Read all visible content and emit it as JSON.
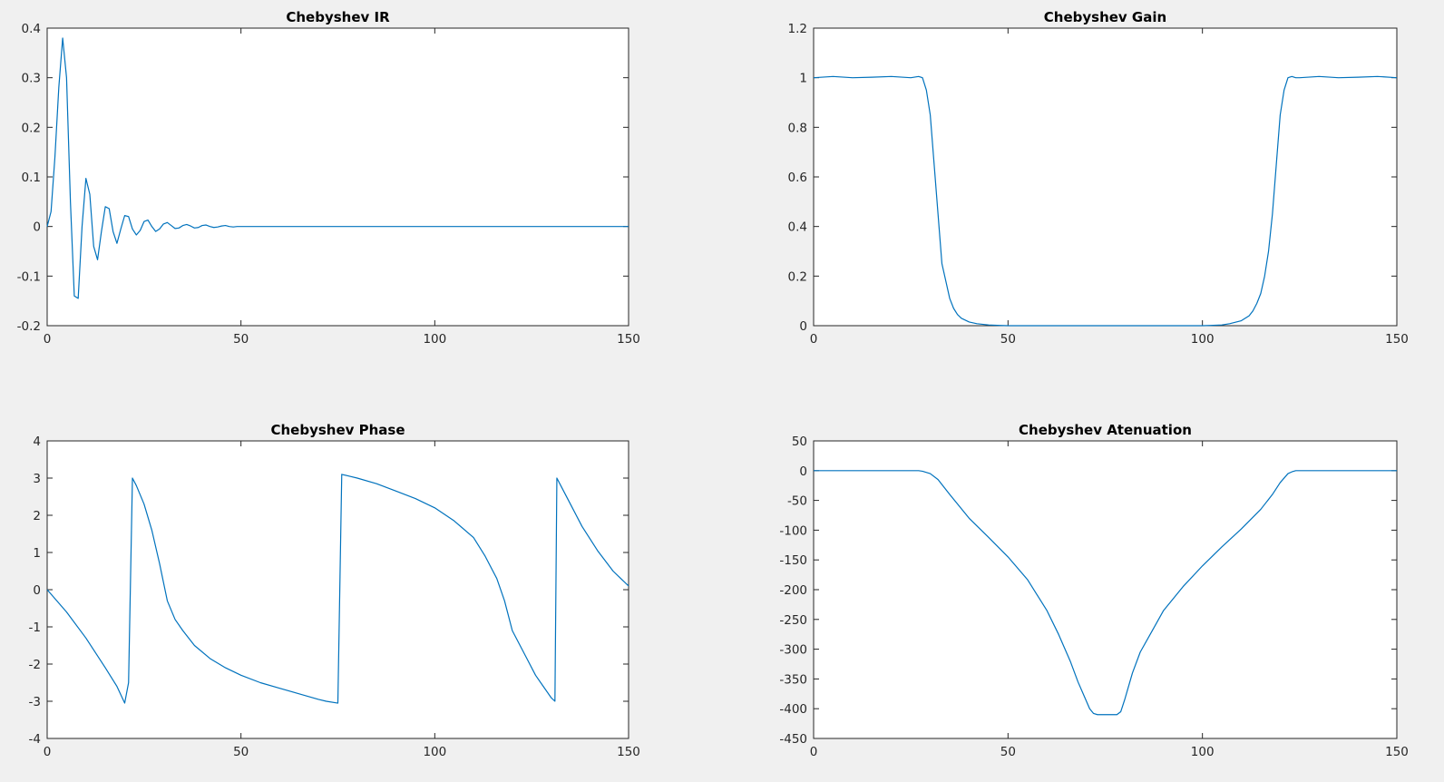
{
  "figure": {
    "background": "#f0f0f0",
    "line_color": "#0072bd"
  },
  "chart_data": [
    {
      "type": "line",
      "title": "Chebyshev IR",
      "xlabel": "",
      "ylabel": "",
      "xlim": [
        0,
        150
      ],
      "ylim": [
        -0.2,
        0.4
      ],
      "xticks": [
        0,
        50,
        100,
        150
      ],
      "yticks": [
        -0.2,
        -0.1,
        0,
        0.1,
        0.2,
        0.3,
        0.4
      ],
      "xtick_labels": [
        "0",
        "50",
        "100",
        "150"
      ],
      "ytick_labels": [
        "-0.2",
        "-0.1",
        "0",
        "0.1",
        "0.2",
        "0.3",
        "0.4"
      ],
      "grid": false,
      "series": [
        {
          "x": [
            0,
            1,
            2,
            3,
            4,
            5,
            6,
            7,
            8,
            9,
            10,
            11,
            12,
            13,
            14,
            15,
            16,
            17,
            18,
            19,
            20,
            21,
            22,
            23,
            24,
            25,
            26,
            27,
            28,
            29,
            30,
            31,
            32,
            33,
            34,
            35,
            36,
            37,
            38,
            39,
            40,
            41,
            42,
            43,
            44,
            45,
            46,
            47,
            48,
            49,
            50,
            150
          ],
          "y": [
            0,
            0.03,
            0.14,
            0.28,
            0.38,
            0.3,
            0.05,
            -0.14,
            -0.145,
            0.0,
            0.097,
            0.065,
            -0.04,
            -0.067,
            -0.01,
            0.04,
            0.036,
            -0.01,
            -0.034,
            -0.005,
            0.022,
            0.02,
            -0.005,
            -0.017,
            -0.008,
            0.01,
            0.013,
            0.0,
            -0.01,
            -0.005,
            0.005,
            0.008,
            0.002,
            -0.004,
            -0.003,
            0.002,
            0.004,
            0.001,
            -0.003,
            -0.002,
            0.002,
            0.003,
            0.0,
            -0.002,
            -0.001,
            0.001,
            0.002,
            0.0,
            -0.001,
            0.0,
            0,
            0
          ]
        }
      ]
    },
    {
      "type": "line",
      "title": "Chebyshev Gain",
      "xlabel": "",
      "ylabel": "",
      "xlim": [
        0,
        150
      ],
      "ylim": [
        0,
        1.2
      ],
      "xticks": [
        0,
        50,
        100,
        150
      ],
      "yticks": [
        0,
        0.2,
        0.4,
        0.6,
        0.8,
        1,
        1.2
      ],
      "xtick_labels": [
        "0",
        "50",
        "100",
        "150"
      ],
      "ytick_labels": [
        "0",
        "0.2",
        "0.4",
        "0.6",
        "0.8",
        "1",
        "1.2"
      ],
      "grid": false,
      "series": [
        {
          "x": [
            0,
            5,
            10,
            15,
            20,
            25,
            27,
            28,
            29,
            30,
            31,
            32,
            33,
            34,
            35,
            36,
            37,
            38,
            40,
            42,
            45,
            48,
            50,
            60,
            70,
            80,
            90,
            100,
            102,
            105,
            107,
            110,
            112,
            113,
            114,
            115,
            116,
            117,
            118,
            119,
            120,
            121,
            122,
            123,
            124,
            125,
            130,
            135,
            140,
            145,
            150
          ],
          "y": [
            1,
            1.005,
            1.0,
            1.002,
            1.005,
            1.0,
            1.005,
            1.0,
            0.95,
            0.85,
            0.65,
            0.45,
            0.25,
            0.18,
            0.11,
            0.07,
            0.045,
            0.03,
            0.015,
            0.008,
            0.003,
            0.001,
            0,
            0,
            0,
            0,
            0,
            0,
            0.001,
            0.003,
            0.008,
            0.02,
            0.04,
            0.06,
            0.09,
            0.13,
            0.2,
            0.3,
            0.45,
            0.65,
            0.85,
            0.95,
            1.0,
            1.005,
            1.0,
            1.0,
            1.005,
            1.0,
            1.002,
            1.005,
            1.0
          ]
        }
      ]
    },
    {
      "type": "line",
      "title": "Chebyshev Phase",
      "xlabel": "",
      "ylabel": "",
      "xlim": [
        0,
        150
      ],
      "ylim": [
        -4,
        4
      ],
      "xticks": [
        0,
        50,
        100,
        150
      ],
      "yticks": [
        -4,
        -3,
        -2,
        -1,
        0,
        1,
        2,
        3,
        4
      ],
      "xtick_labels": [
        "0",
        "50",
        "100",
        "150"
      ],
      "ytick_labels": [
        "-4",
        "-3",
        "-2",
        "-1",
        "0",
        "1",
        "2",
        "3",
        "4"
      ],
      "grid": false,
      "series": [
        {
          "x": [
            0,
            5,
            10,
            15,
            18,
            20,
            21,
            22,
            23,
            25,
            27,
            29,
            31,
            33,
            35,
            38,
            42,
            46,
            50,
            55,
            60,
            65,
            70,
            72,
            75,
            76,
            78,
            80,
            85,
            90,
            95,
            100,
            105,
            110,
            113,
            116,
            118,
            119,
            120,
            122,
            124,
            126,
            128,
            130,
            131,
            131.5,
            133,
            135,
            138,
            142,
            146,
            150
          ],
          "y": [
            0,
            -0.6,
            -1.3,
            -2.1,
            -2.6,
            -3.05,
            -2.5,
            3.0,
            2.8,
            2.3,
            1.6,
            0.7,
            -0.3,
            -0.8,
            -1.1,
            -1.5,
            -1.85,
            -2.1,
            -2.3,
            -2.5,
            -2.65,
            -2.8,
            -2.95,
            -3.0,
            -3.05,
            3.1,
            3.05,
            3.0,
            2.85,
            2.65,
            2.45,
            2.2,
            1.85,
            1.4,
            0.9,
            0.3,
            -0.3,
            -0.7,
            -1.1,
            -1.5,
            -1.9,
            -2.3,
            -2.6,
            -2.9,
            -3.0,
            3.0,
            2.7,
            2.3,
            1.7,
            1.05,
            0.5,
            0.1
          ]
        }
      ]
    },
    {
      "type": "line",
      "title": "Chebyshev Atenuation",
      "xlabel": "",
      "ylabel": "",
      "xlim": [
        0,
        150
      ],
      "ylim": [
        -450,
        50
      ],
      "xticks": [
        0,
        50,
        100,
        150
      ],
      "yticks": [
        -450,
        -400,
        -350,
        -300,
        -250,
        -200,
        -150,
        -100,
        -50,
        0,
        50
      ],
      "xtick_labels": [
        "0",
        "50",
        "100",
        "150"
      ],
      "ytick_labels": [
        "-450",
        "-400",
        "-350",
        "-300",
        "-250",
        "-200",
        "-150",
        "-100",
        "-50",
        "0",
        "50"
      ],
      "grid": false,
      "series": [
        {
          "x": [
            0,
            10,
            20,
            27,
            28,
            30,
            32,
            35,
            40,
            45,
            50,
            55,
            60,
            63,
            66,
            68,
            70,
            71,
            72,
            73,
            74,
            75,
            76,
            77,
            78,
            79,
            80,
            82,
            84,
            87,
            90,
            95,
            100,
            105,
            110,
            115,
            118,
            120,
            122,
            123,
            124,
            125,
            130,
            140,
            150
          ],
          "y": [
            0,
            0,
            0,
            0,
            -1,
            -5,
            -15,
            -40,
            -80,
            -112,
            -145,
            -183,
            -235,
            -275,
            -320,
            -355,
            -385,
            -400,
            -408,
            -410,
            -410,
            -410,
            -410,
            -410,
            -410,
            -405,
            -385,
            -340,
            -305,
            -270,
            -235,
            -195,
            -160,
            -128,
            -98,
            -65,
            -40,
            -20,
            -5,
            -2,
            0,
            0,
            0,
            0,
            0
          ]
        }
      ]
    }
  ]
}
